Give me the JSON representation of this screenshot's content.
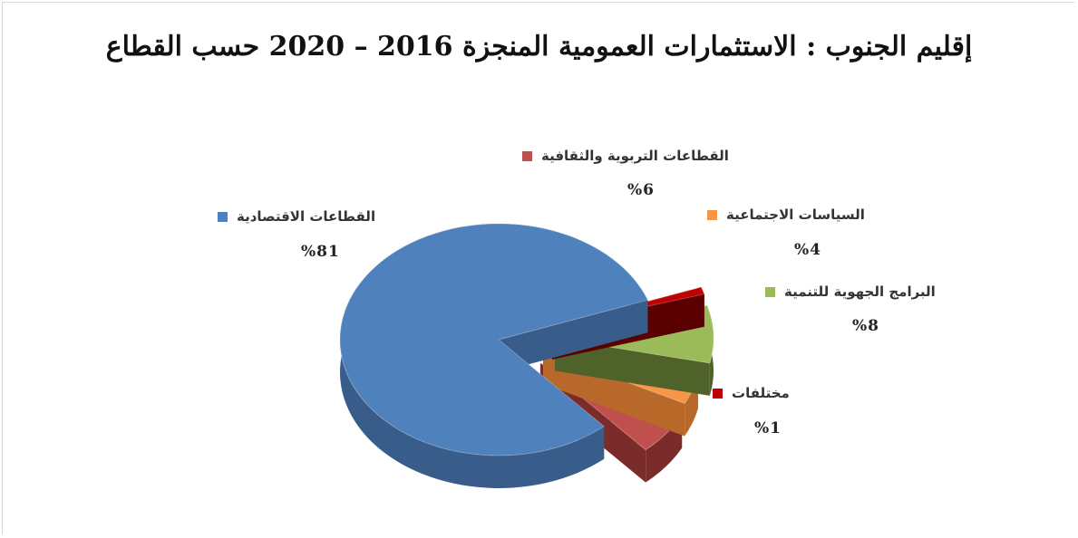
{
  "chart_data": {
    "type": "pie",
    "title": "إقليم الجنوب : الاستثمارات العمومية المنجزة 2016 – 2020 حسب القطاع",
    "legend_placement": "labels next to slices",
    "slices": [
      {
        "name": "القطاعات الاقتصادية",
        "value": 81,
        "label": "%81",
        "color": "#4f81bd",
        "side": "#385d8a"
      },
      {
        "name": "القطاعات التربوية والثقافية",
        "value": 6,
        "label": "%6",
        "color": "#c0504d",
        "side": "#7b2c2a"
      },
      {
        "name": "السياسات الاجتماعية",
        "value": 4,
        "label": "%4",
        "color": "#f79646",
        "side": "#b8692a"
      },
      {
        "name": "البرامج الجهوية للتنمية",
        "value": 8,
        "label": "%8",
        "color": "#9bbb59",
        "side": "#4f6229"
      },
      {
        "name": "مختلفات",
        "value": 1,
        "label": "%1",
        "color": "#c00000",
        "side": "#5a0000"
      }
    ]
  }
}
